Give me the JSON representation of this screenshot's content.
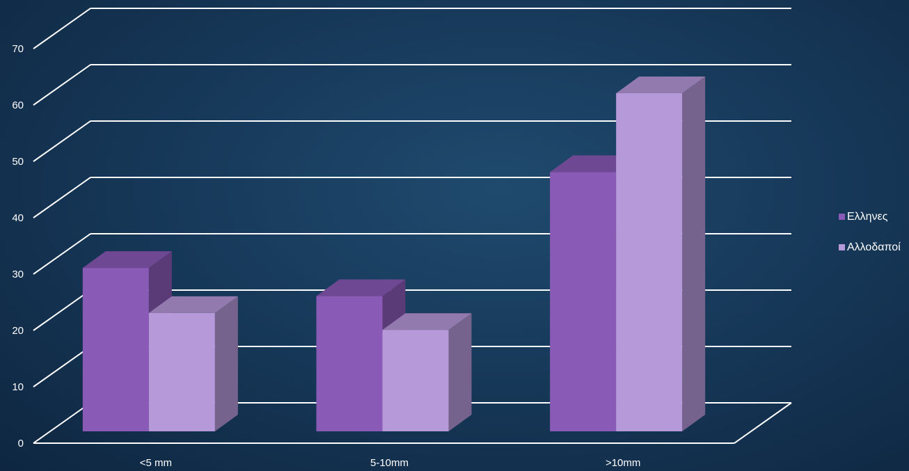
{
  "chart_data": {
    "type": "bar",
    "categories": [
      "<5 mm",
      "5-10mm",
      ">10mm"
    ],
    "series": [
      {
        "name": "Ελληνες",
        "values": [
          29,
          24,
          46
        ],
        "color": "#8a5ab7"
      },
      {
        "name": "Αλλοδαποί",
        "values": [
          21,
          18,
          60
        ],
        "color": "#b699d9"
      }
    ],
    "ylim": [
      0,
      70
    ],
    "yticks": [
      0,
      10,
      20,
      30,
      40,
      50,
      60,
      70
    ],
    "grid": true,
    "legend_position": "right",
    "title": "",
    "xlabel": "",
    "ylabel": ""
  },
  "colors": {
    "gridline": "#ffffff",
    "background": "#17395a"
  }
}
